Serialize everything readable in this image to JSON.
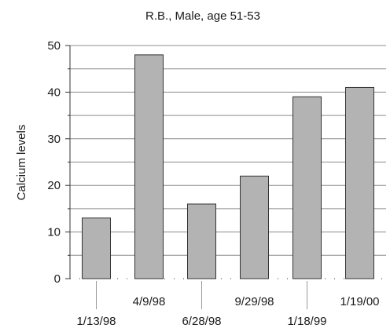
{
  "chart_data": {
    "type": "bar",
    "title": "R.B., Male, age 51-53",
    "xlabel": "",
    "ylabel": "Calcium levels",
    "categories": [
      "1/13/98",
      "4/9/98",
      "6/28/98",
      "9/29/98",
      "1/18/99",
      "1/19/00"
    ],
    "values": [
      13,
      48,
      16,
      22,
      39,
      41
    ],
    "ylim": [
      0,
      50
    ],
    "yticks": [
      0,
      10,
      20,
      30,
      40,
      50
    ],
    "grid": true,
    "colors": {
      "bar": "#b3b3b3",
      "bar_stroke": "#333333",
      "grid": "#8c8c8c",
      "axis": "#333333"
    }
  }
}
